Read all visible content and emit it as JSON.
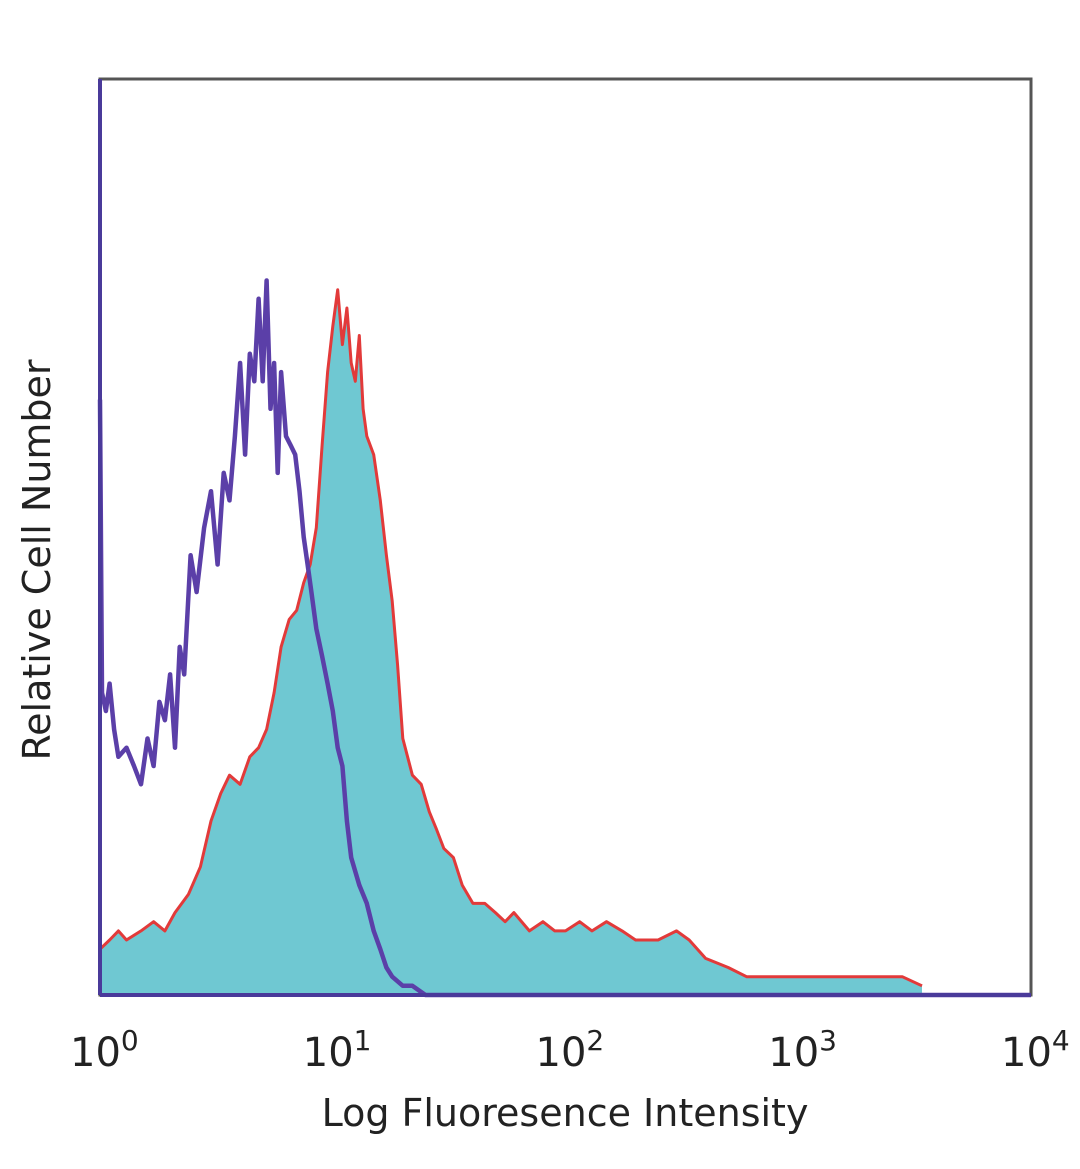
{
  "chart_data": {
    "type": "area",
    "xlabel": "Log Fluoresence Intensity",
    "ylabel": "Relative Cell Number",
    "x_scale": "log",
    "xlim": [
      1,
      10000
    ],
    "ylim": [
      0,
      100
    ],
    "grid": false,
    "legend": "none",
    "x_ticks": [
      {
        "base": "10",
        "exp": "0"
      },
      {
        "base": "10",
        "exp": "1"
      },
      {
        "base": "10",
        "exp": "2"
      },
      {
        "base": "10",
        "exp": "3"
      },
      {
        "base": "10",
        "exp": "4"
      }
    ],
    "series": [
      {
        "style": "filled",
        "fill_color": "#6fc8d2",
        "line_color": "#e23a3a",
        "x": [
          1.0,
          1.1,
          1.2,
          1.3,
          1.5,
          1.7,
          1.9,
          2.1,
          2.4,
          2.7,
          3.0,
          3.3,
          3.6,
          4.0,
          4.4,
          4.8,
          5.2,
          5.6,
          6.0,
          6.5,
          7.0,
          7.5,
          8.0,
          8.5,
          9.0,
          9.5,
          10.0,
          10.5,
          11.0,
          11.5,
          12.0,
          12.5,
          13.0,
          13.5,
          14.0,
          15.0,
          16.0,
          17.0,
          18.0,
          19.0,
          20.0,
          22.0,
          24.0,
          26.0,
          28.0,
          30.0,
          33.0,
          36.0,
          40.0,
          45.0,
          50.0,
          55.0,
          60.0,
          70.0,
          80.0,
          90.0,
          100.0,
          115.0,
          130.0,
          150.0,
          175.0,
          200.0,
          250.0,
          300.0,
          340.0,
          400.0,
          500.0,
          600.0,
          800.0,
          1000.0,
          1300.0,
          1700.0,
          2200.0,
          2800.0,
          3400.0
        ],
        "y": [
          5,
          6,
          7,
          6,
          7,
          8,
          7,
          9,
          11,
          14,
          19,
          22,
          24,
          23,
          26,
          27,
          29,
          33,
          38,
          41,
          42,
          45,
          47,
          51,
          60,
          68,
          73,
          77,
          71,
          75,
          69,
          67,
          72,
          64,
          61,
          59,
          54,
          48,
          43,
          36,
          28,
          24,
          23,
          20,
          18,
          16,
          15,
          12,
          10,
          10,
          9,
          8,
          9,
          7,
          8,
          7,
          7,
          8,
          7,
          8,
          7,
          6,
          6,
          7,
          6,
          4,
          3,
          2,
          2,
          2,
          2,
          2,
          2,
          2,
          1
        ]
      },
      {
        "style": "line",
        "line_color": "#5b3fa8",
        "x": [
          1.0,
          1.02,
          1.06,
          1.1,
          1.15,
          1.2,
          1.3,
          1.4,
          1.5,
          1.6,
          1.7,
          1.8,
          1.9,
          2.0,
          2.1,
          2.2,
          2.3,
          2.45,
          2.6,
          2.8,
          3.0,
          3.2,
          3.4,
          3.6,
          3.8,
          4.0,
          4.2,
          4.4,
          4.6,
          4.8,
          5.0,
          5.2,
          5.4,
          5.6,
          5.8,
          6.0,
          6.3,
          6.6,
          6.9,
          7.2,
          7.5,
          7.8,
          8.1,
          8.5,
          9.0,
          9.5,
          10.0,
          10.5,
          11.0,
          11.5,
          12.0,
          13.0,
          14.0,
          15.0,
          16.0,
          17.0,
          18.0,
          20.0,
          22.0,
          25.0,
          30.0,
          35.0,
          40.0,
          60.0,
          100.0,
          150.0,
          200.0,
          300.0,
          1000.0,
          10000.0
        ],
        "y": [
          65,
          33,
          31,
          34,
          29,
          26,
          27,
          25,
          23,
          28,
          25,
          32,
          30,
          35,
          27,
          38,
          35,
          48,
          44,
          51,
          55,
          47,
          57,
          54,
          61,
          69,
          59,
          70,
          67,
          76,
          67,
          78,
          64,
          69,
          57,
          68,
          61,
          60,
          59,
          55,
          50,
          47,
          44,
          40,
          37,
          34,
          31,
          27,
          25,
          19,
          15,
          12,
          10,
          7,
          5,
          3,
          2,
          1,
          1,
          0,
          0,
          0,
          0,
          0,
          0,
          0,
          0,
          0,
          0,
          0
        ]
      }
    ]
  }
}
